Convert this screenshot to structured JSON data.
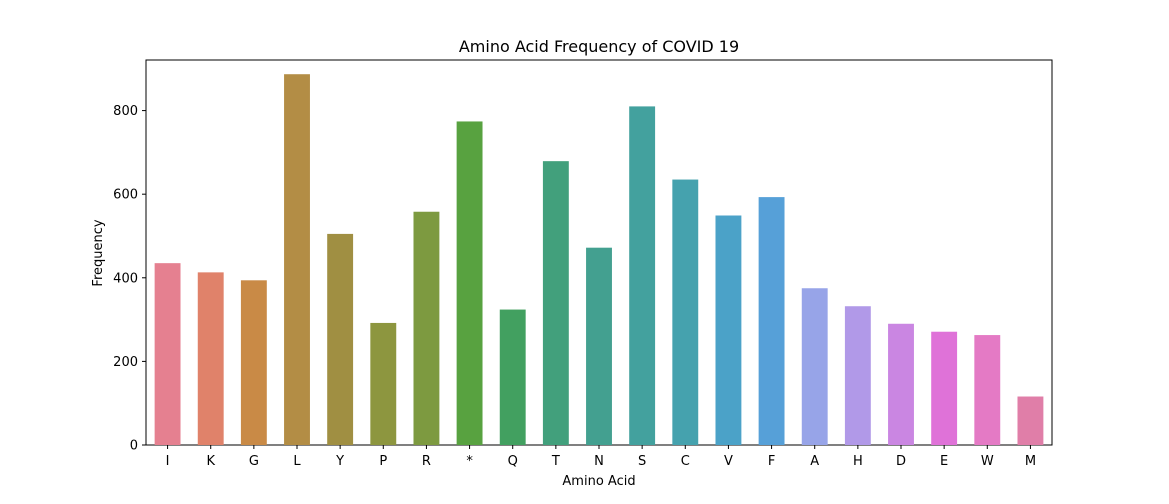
{
  "chart_data": {
    "type": "bar",
    "title": "Amino Acid Frequency of COVID 19",
    "xlabel": "Amino Acid",
    "ylabel": "Frequency",
    "categories": [
      "I",
      "K",
      "G",
      "L",
      "Y",
      "P",
      "R",
      "*",
      "Q",
      "T",
      "N",
      "S",
      "C",
      "V",
      "F",
      "A",
      "H",
      "D",
      "E",
      "W",
      "M"
    ],
    "values": [
      435,
      413,
      394,
      887,
      505,
      292,
      558,
      774,
      324,
      679,
      472,
      810,
      635,
      549,
      593,
      375,
      332,
      290,
      271,
      263,
      116
    ],
    "colors": [
      "#e58090",
      "#e0826a",
      "#c98a46",
      "#b38d45",
      "#a08f42",
      "#8d963f",
      "#7d9a40",
      "#58a240",
      "#42a060",
      "#42a07c",
      "#43a090",
      "#43a19e",
      "#45a2ae",
      "#4ba2c8",
      "#56a0d8",
      "#97a4e8",
      "#b199e8",
      "#ca86e2",
      "#df72d8",
      "#e47ac5",
      "#e07ea8"
    ],
    "ylim": [
      0,
      921
    ],
    "yticks": [
      0,
      200,
      400,
      600,
      800
    ],
    "grid": false,
    "legend": "none"
  }
}
